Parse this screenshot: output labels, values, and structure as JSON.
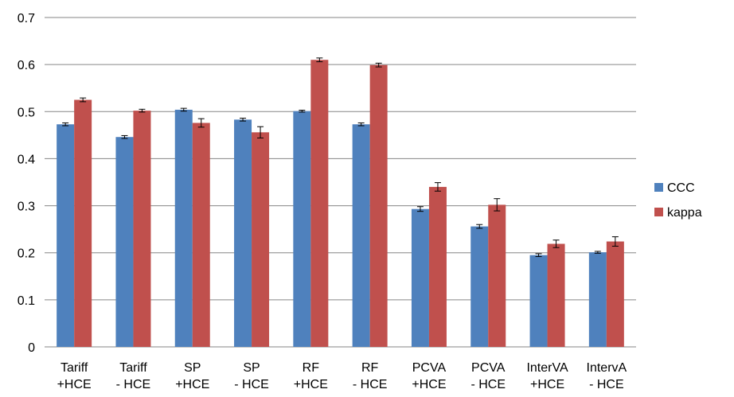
{
  "chart_data": {
    "type": "bar",
    "categories": [
      [
        "Tariff",
        "+HCE"
      ],
      [
        "Tariff",
        "- HCE"
      ],
      [
        "SP",
        "+HCE"
      ],
      [
        "SP",
        "- HCE"
      ],
      [
        "RF",
        "+HCE"
      ],
      [
        "RF",
        "- HCE"
      ],
      [
        "PCVA",
        "+HCE"
      ],
      [
        "PCVA",
        "- HCE"
      ],
      [
        "InterVA",
        "+HCE"
      ],
      [
        "IntervA",
        "- HCE"
      ]
    ],
    "series": [
      {
        "name": "CCC",
        "color": "#4F81BD",
        "values": [
          0.473,
          0.446,
          0.504,
          0.483,
          0.501,
          0.473,
          0.293,
          0.256,
          0.195,
          0.201
        ],
        "errors": [
          0.003,
          0.003,
          0.003,
          0.003,
          0.002,
          0.003,
          0.005,
          0.004,
          0.003,
          0.002
        ]
      },
      {
        "name": "kappa",
        "color": "#C0504D",
        "values": [
          0.525,
          0.502,
          0.476,
          0.456,
          0.61,
          0.599,
          0.34,
          0.302,
          0.219,
          0.224
        ],
        "errors": [
          0.004,
          0.003,
          0.009,
          0.012,
          0.004,
          0.004,
          0.009,
          0.013,
          0.008,
          0.01
        ]
      }
    ],
    "title": "",
    "xlabel": "",
    "ylabel": "",
    "ylim": [
      0,
      0.7
    ],
    "yticks": [
      "0",
      "0.1",
      "0.2",
      "0.3",
      "0.4",
      "0.5",
      "0.6",
      "0.7"
    ],
    "grid": true,
    "legend": "right"
  }
}
